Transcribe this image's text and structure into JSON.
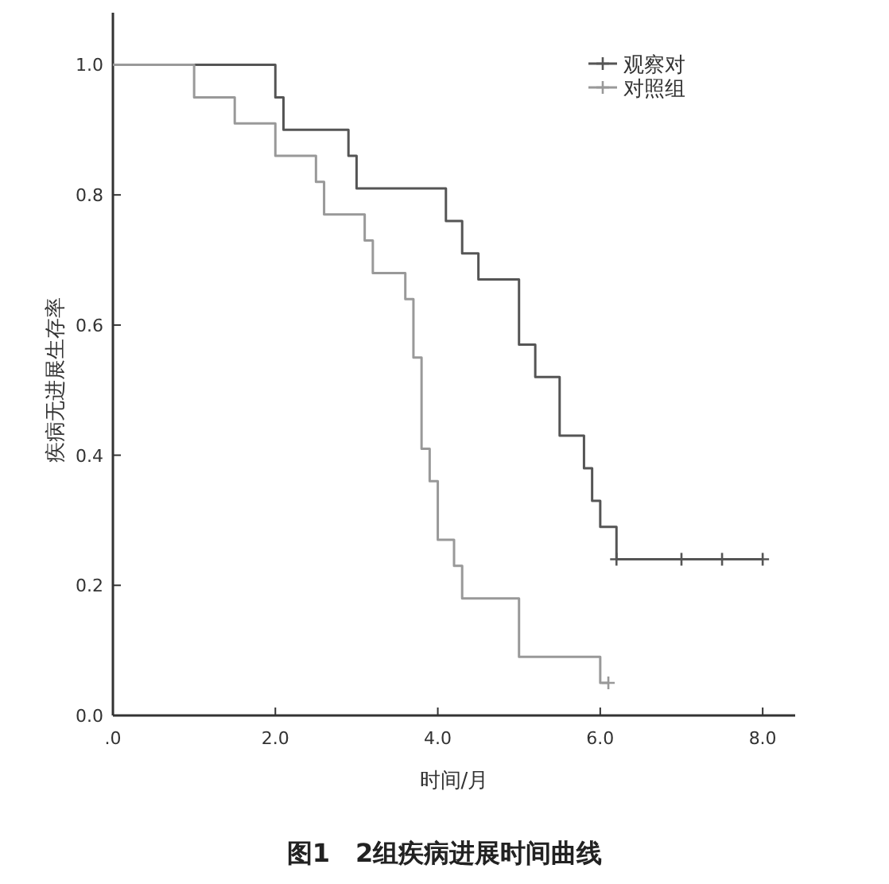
{
  "chart_data": {
    "type": "step",
    "xlabel": "时间/月",
    "ylabel": "疾病无进展生存率",
    "annotations": [
      "图1　2组疾病进展时间曲线"
    ],
    "xlim": [
      0,
      8.4
    ],
    "ylim": [
      0,
      1.08
    ],
    "xticks": [
      {
        "value": 0,
        "label": ".0"
      },
      {
        "value": 2,
        "label": "2.0"
      },
      {
        "value": 4,
        "label": "4.0"
      },
      {
        "value": 6,
        "label": "6.0"
      },
      {
        "value": 8,
        "label": "8.0"
      }
    ],
    "yticks": [
      {
        "value": 0,
        "label": "0.0"
      },
      {
        "value": 0.2,
        "label": "0.2"
      },
      {
        "value": 0.4,
        "label": "0.4"
      },
      {
        "value": 0.6,
        "label": "0.6"
      },
      {
        "value": 0.8,
        "label": "0.8"
      },
      {
        "value": 1,
        "label": "1.0"
      }
    ],
    "grid": false,
    "legend": "top right",
    "series": [
      {
        "name": "观察对",
        "color": "#555555",
        "x": [
          0,
          2.0,
          2.1,
          2.9,
          3.0,
          4.1,
          4.3,
          4.5,
          5.0,
          5.2,
          5.5,
          5.8,
          5.9,
          6.0,
          6.2,
          8.0
        ],
        "values": [
          1.0,
          0.95,
          0.9,
          0.86,
          0.81,
          0.76,
          0.71,
          0.67,
          0.57,
          0.52,
          0.43,
          0.38,
          0.33,
          0.29,
          0.24,
          0.24
        ]
      },
      {
        "name": "对照组",
        "color": "#999999",
        "x": [
          0,
          1.0,
          1.5,
          2.0,
          2.5,
          2.6,
          3.1,
          3.2,
          3.6,
          3.7,
          3.8,
          3.9,
          4.0,
          4.2,
          4.3,
          5.0,
          6.0,
          6.1
        ],
        "values": [
          1.0,
          0.95,
          0.91,
          0.86,
          0.82,
          0.77,
          0.73,
          0.68,
          0.64,
          0.55,
          0.41,
          0.36,
          0.27,
          0.23,
          0.18,
          0.09,
          0.05,
          0.05
        ]
      },
      {
        "type": "scatter",
        "color": "#555555",
        "marker": "cross",
        "x": [
          6.2,
          7.0,
          7.5,
          8.0
        ],
        "values": [
          0.24,
          0.24,
          0.24,
          0.24
        ]
      },
      {
        "type": "scatter",
        "color": "#999999",
        "marker": "cross",
        "x": [
          6.1
        ],
        "values": [
          0.05
        ]
      }
    ]
  }
}
